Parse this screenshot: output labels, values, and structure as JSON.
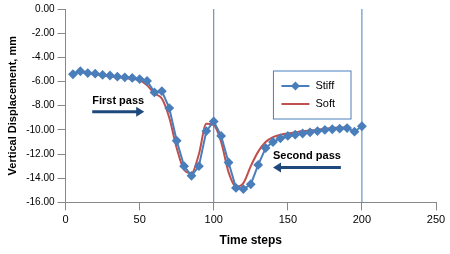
{
  "chart_data": {
    "type": "line",
    "x_label": "Time steps",
    "y_label": "Vertical Displacement, mm",
    "x": [
      5,
      10,
      15,
      20,
      25,
      30,
      35,
      40,
      45,
      50,
      55,
      60,
      65,
      70,
      75,
      80,
      85,
      90,
      95,
      100,
      105,
      110,
      115,
      120,
      125,
      130,
      135,
      140,
      145,
      150,
      155,
      160,
      165,
      170,
      175,
      180,
      185,
      190,
      195,
      200
    ],
    "series": [
      {
        "name": "Stiff",
        "color": "#4a7ebb",
        "marker": "diamond",
        "line_style": "straight",
        "values": [
          -5.4,
          -5.15,
          -5.3,
          -5.35,
          -5.45,
          -5.5,
          -5.6,
          -5.65,
          -5.7,
          -5.8,
          -5.95,
          -6.9,
          -6.8,
          -8.2,
          -10.9,
          -13.0,
          -13.8,
          -13.0,
          -10.1,
          -9.3,
          -10.5,
          -12.7,
          -14.8,
          -14.9,
          -14.5,
          -12.9,
          -11.5,
          -11.0,
          -10.7,
          -10.5,
          -10.4,
          -10.3,
          -10.2,
          -10.1,
          -10.0,
          -9.95,
          -9.9,
          -9.85,
          -10.15,
          -9.7
        ]
      },
      {
        "name": "Soft",
        "color": "#c0504d",
        "marker": "none",
        "line_style": "smooth",
        "values": [
          -5.3,
          -5.2,
          -5.35,
          -5.4,
          -5.5,
          -5.55,
          -5.65,
          -5.7,
          -5.8,
          -5.9,
          -6.3,
          -7.0,
          -7.4,
          -9.0,
          -11.5,
          -13.3,
          -13.6,
          -12.0,
          -9.5,
          -9.6,
          -11.0,
          -13.5,
          -14.7,
          -14.4,
          -13.0,
          -11.8,
          -11.0,
          -10.6,
          -10.4,
          -10.3,
          -10.2,
          -10.1,
          -10.05,
          -10.0,
          -9.9,
          -9.85,
          -9.8,
          -9.8,
          null,
          null
        ]
      }
    ],
    "xlim": [
      0,
      250
    ],
    "xticks": [
      0,
      50,
      100,
      150,
      200,
      250
    ],
    "ylim": [
      -16,
      0
    ],
    "yticks": [
      {
        "value": -16,
        "label": "-16.00"
      },
      {
        "value": -14,
        "label": "-14.00"
      },
      {
        "value": -12,
        "label": "-12.00"
      },
      {
        "value": -10,
        "label": "-10.00"
      },
      {
        "value": -8,
        "label": "-8.00"
      },
      {
        "value": -6,
        "label": "-6.00"
      },
      {
        "value": -4,
        "label": "-4.00"
      },
      {
        "value": -2,
        "label": "-2.00"
      },
      {
        "value": 0,
        "label": "0.00"
      }
    ],
    "vertical_lines": [
      100,
      200
    ],
    "annotations": [
      {
        "text": "First pass",
        "x": 18,
        "y": -7.6,
        "arrow": "right"
      },
      {
        "text": "Second pass",
        "x": 140,
        "y": -12.2,
        "arrow": "left"
      }
    ],
    "grid": false,
    "legend": "upper right"
  }
}
